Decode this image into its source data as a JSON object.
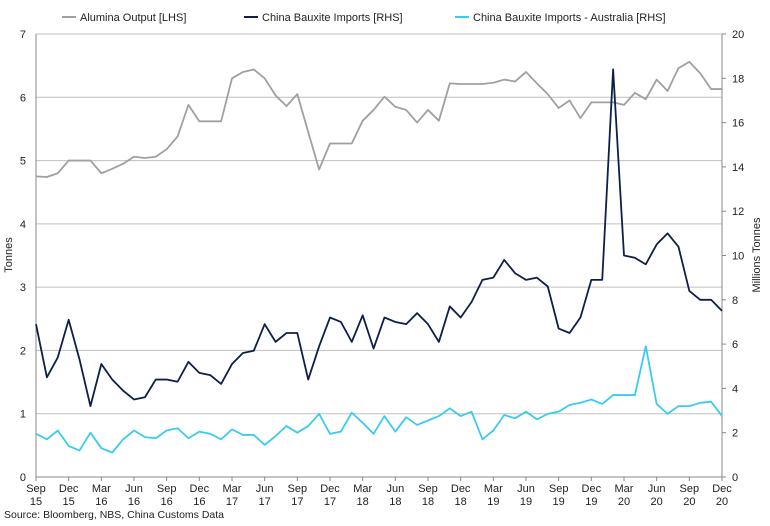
{
  "chart_data": {
    "type": "line",
    "categories": [
      "Sep 15",
      null,
      null,
      "Dec 15",
      null,
      null,
      "Mar 16",
      null,
      null,
      "Jun 16",
      null,
      null,
      "Sep 16",
      null,
      null,
      "Dec 16",
      null,
      null,
      "Mar 17",
      null,
      null,
      "Jun 17",
      null,
      null,
      "Sep 17",
      null,
      null,
      "Dec 17",
      null,
      null,
      "Mar 18",
      null,
      null,
      "Jun 18",
      null,
      null,
      "Sep 18",
      null,
      null,
      "Dec 18",
      null,
      null,
      "Mar 19",
      null,
      null,
      "Jun 19",
      null,
      null,
      "Sep 19",
      null,
      null,
      "Dec 19",
      null,
      null,
      "Mar 20",
      null,
      null,
      "Jun 20",
      null,
      null,
      "Sep 20",
      null,
      null,
      "Dec 20"
    ],
    "series": [
      {
        "name": "Alumina Output [LHS]",
        "color": "#a0a0a0",
        "axis": "y",
        "values": [
          4.75,
          4.74,
          4.8,
          5.0,
          5.0,
          5.0,
          4.8,
          4.87,
          4.95,
          5.06,
          5.04,
          5.06,
          5.18,
          5.38,
          5.88,
          5.62,
          5.62,
          5.62,
          6.3,
          6.4,
          6.44,
          6.3,
          6.03,
          5.86,
          6.05,
          5.45,
          4.86,
          5.27,
          5.27,
          5.27,
          5.63,
          5.8,
          6.01,
          5.85,
          5.8,
          5.6,
          5.8,
          5.63,
          6.22,
          6.21,
          6.21,
          6.21,
          6.23,
          6.28,
          6.25,
          6.4,
          6.22,
          6.05,
          5.83,
          5.95,
          5.67,
          5.92,
          5.92,
          5.92,
          5.88,
          6.07,
          5.97,
          6.28,
          6.1,
          6.46,
          6.56,
          6.38,
          6.13,
          6.13
        ]
      },
      {
        "name": "China Bauxite Imports [RHS]",
        "color": "#0d1f4a",
        "axis": "y2",
        "values": [
          6.9,
          4.5,
          5.4,
          7.1,
          5.3,
          3.2,
          5.1,
          4.4,
          3.9,
          3.5,
          3.6,
          4.4,
          4.4,
          4.3,
          5.2,
          4.7,
          4.6,
          4.2,
          5.1,
          5.6,
          5.7,
          6.9,
          6.1,
          6.5,
          6.5,
          4.4,
          5.9,
          7.2,
          7.0,
          6.1,
          7.3,
          5.8,
          7.2,
          7.0,
          6.9,
          7.4,
          6.9,
          6.1,
          7.7,
          7.2,
          7.9,
          8.9,
          9.0,
          9.8,
          9.2,
          8.9,
          9.0,
          8.6,
          6.7,
          6.5,
          7.2,
          8.9,
          8.9,
          18.4,
          10.0,
          9.9,
          9.6,
          10.5,
          11.0,
          10.4,
          8.4,
          8.0,
          8.0,
          7.5
        ]
      },
      {
        "name": "China Bauxite Imports - Australia [RHS]",
        "color": "#3ccbf0",
        "axis": "y2",
        "values": [
          1.95,
          1.7,
          2.1,
          1.4,
          1.2,
          2.0,
          1.3,
          1.1,
          1.7,
          2.1,
          1.8,
          1.75,
          2.1,
          2.2,
          1.75,
          2.05,
          1.95,
          1.7,
          2.15,
          1.9,
          1.9,
          1.45,
          1.85,
          2.3,
          2.0,
          2.3,
          2.85,
          1.95,
          2.05,
          2.9,
          2.45,
          1.95,
          2.75,
          2.05,
          2.7,
          2.35,
          2.55,
          2.75,
          3.1,
          2.75,
          2.95,
          1.7,
          2.1,
          2.8,
          2.65,
          2.95,
          2.6,
          2.85,
          2.95,
          3.25,
          3.35,
          3.5,
          3.3,
          3.7,
          3.7,
          3.7,
          5.9,
          3.3,
          2.85,
          3.2,
          3.2,
          3.35,
          3.4,
          2.75
        ]
      }
    ],
    "ylabel": "Tonnes",
    "y2label": "Millions Tonnes",
    "ylim": [
      0,
      7
    ],
    "yticks": [
      0,
      1,
      2,
      3,
      4,
      5,
      6,
      7
    ],
    "y2lim": [
      0,
      20
    ],
    "y2ticks": [
      0,
      2,
      4,
      6,
      8,
      10,
      12,
      14,
      16,
      18,
      20
    ],
    "grid": true,
    "legend": "top",
    "source": "Source: Bloomberg, NBS, China Customs Data"
  }
}
